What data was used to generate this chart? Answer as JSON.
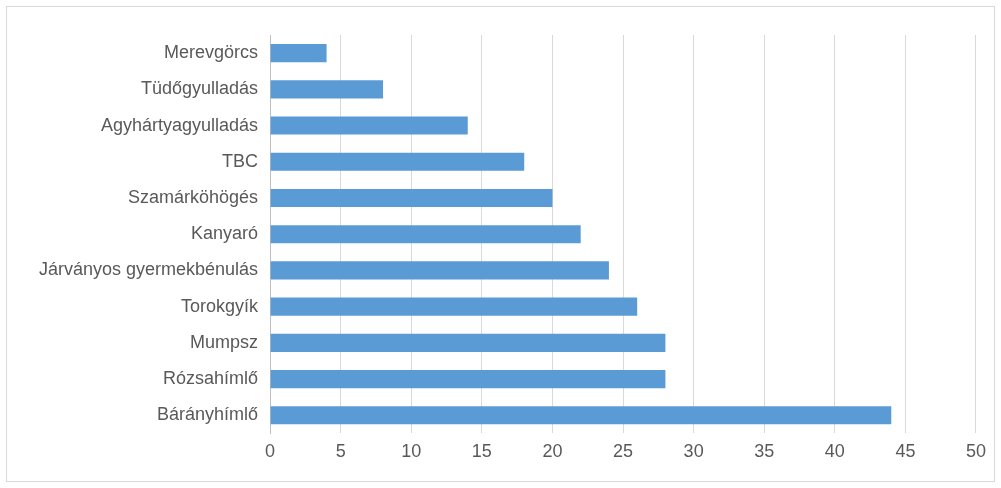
{
  "chart_data": {
    "type": "bar",
    "orientation": "horizontal",
    "categories": [
      "Merevgörcs",
      "Tüdőgyulladás",
      "Agyhártyagyulladás",
      "TBC",
      "Szamárköhögés",
      "Kanyaró",
      "Járványos gyermekbénulás",
      "Torokgyík",
      "Mumpsz",
      "Rózsahímlő",
      "Bárányhímlő"
    ],
    "values": [
      4,
      8,
      14,
      18,
      20,
      22,
      24,
      26,
      28,
      28,
      44
    ],
    "color": "#5b9bd5",
    "xlim": [
      0,
      50
    ],
    "xticks": [
      0,
      5,
      10,
      15,
      20,
      25,
      30,
      35,
      40,
      45,
      50
    ],
    "grid": "x"
  }
}
